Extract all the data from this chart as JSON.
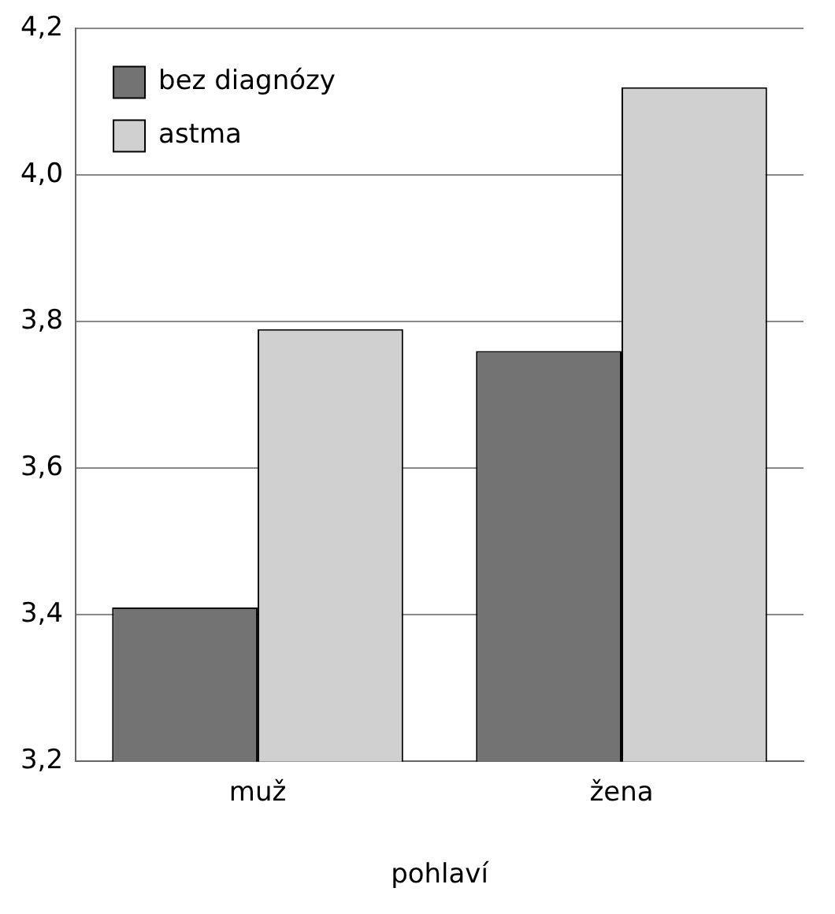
{
  "chart_data": {
    "type": "bar",
    "xlabel": "pohlaví",
    "categories": [
      "muž",
      "žena"
    ],
    "series": [
      {
        "name": "bez diagnózy",
        "color": "#737373",
        "values": [
          3.41,
          3.76
        ]
      },
      {
        "name": "astma",
        "color": "#d0d0d0",
        "values": [
          3.79,
          4.12
        ]
      }
    ],
    "ylim": [
      3.2,
      4.2
    ],
    "yticks": [
      {
        "value": 3.2,
        "label": "3,2"
      },
      {
        "value": 3.4,
        "label": "3,4"
      },
      {
        "value": 3.6,
        "label": "3,6"
      },
      {
        "value": 3.8,
        "label": "3,8"
      },
      {
        "value": 4.0,
        "label": "4,0"
      },
      {
        "value": 4.2,
        "label": "4,2"
      }
    ],
    "grid": "y",
    "legend": "top left"
  }
}
